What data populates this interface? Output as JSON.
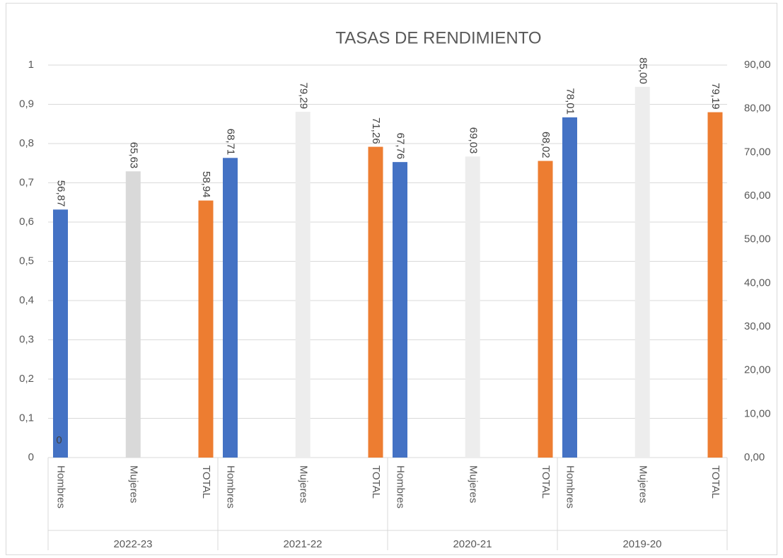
{
  "chart_data": {
    "type": "bar",
    "title": "TASAS DE RENDIMIENTO",
    "categories": [
      "Hombres",
      "Mujeres",
      "TOTAL",
      "Hombres",
      "Mujeres",
      "TOTAL",
      "Hombres",
      "Mujeres",
      "TOTAL",
      "Hombres",
      "Mujeres",
      "TOTAL"
    ],
    "groups": [
      "2022-23",
      "2021-22",
      "2020-21",
      "2019-20"
    ],
    "series": [
      {
        "values": [
          56.87,
          65.63,
          58.94,
          68.71,
          79.29,
          71.26,
          67.76,
          69.03,
          68.02,
          78.01,
          85.0,
          79.19
        ],
        "value_labels": [
          "56,87",
          "65,63",
          "58,94",
          "68,71",
          "79,29",
          "71,26",
          "67,76",
          "69,03",
          "68,02",
          "78,01",
          "85,00",
          "79,19"
        ],
        "colors": [
          "#4472c4",
          "#d9d9d9",
          "#ed7d31",
          "#4472c4",
          "#ededed",
          "#ed7d31",
          "#4472c4",
          "#ededed",
          "#ed7d31",
          "#4472c4",
          "#ededed",
          "#ed7d31"
        ],
        "axis": "y2"
      },
      {
        "values": [
          0,
          null,
          null,
          null,
          null,
          null,
          null,
          null,
          null,
          null,
          null,
          null
        ],
        "color": "#4472c4"
      }
    ],
    "ylim": [
      0,
      1
    ],
    "yticks": [
      0,
      {
        "value": 0.1,
        "label": "0,1"
      },
      {
        "value": 0.2,
        "label": "0,2"
      },
      {
        "value": 0.3,
        "label": "0,3"
      },
      {
        "value": 0.4,
        "label": "0,4"
      },
      {
        "value": 0.5,
        "label": "0,5"
      },
      {
        "value": 0.6,
        "label": "0,6"
      },
      {
        "value": 0.7,
        "label": "0,7"
      },
      {
        "value": 0.8,
        "label": "0,8"
      },
      {
        "value": 0.9,
        "label": "0,9"
      },
      1
    ],
    "y2lim": [
      0,
      90
    ],
    "y2ticks": [
      {
        "value": 0,
        "label": "0,00"
      },
      {
        "value": 10,
        "label": "10,00"
      },
      {
        "value": 20,
        "label": "20,00"
      },
      {
        "value": 30,
        "label": "30,00"
      },
      {
        "value": 40,
        "label": "40,00"
      },
      {
        "value": 50,
        "label": "50,00"
      },
      {
        "value": 60,
        "label": "60,00"
      },
      {
        "value": 70,
        "label": "70,00"
      },
      {
        "value": 80,
        "label": "80,00"
      },
      {
        "value": 90,
        "label": "90,00"
      }
    ],
    "grid": true
  }
}
